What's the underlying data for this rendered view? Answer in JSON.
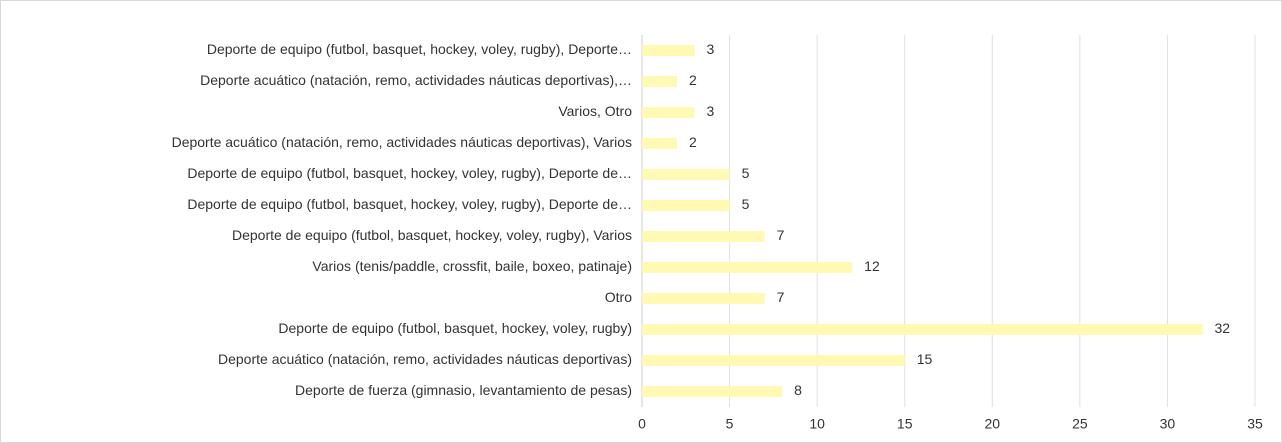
{
  "chart_data": {
    "type": "bar",
    "orientation": "horizontal",
    "categories": [
      "Deporte de equipo (futbol, basquet, hockey, voley, rugby), Deporte…",
      "Deporte acuático (natación, remo, actividades náuticas deportivas),…",
      "Varios, Otro",
      "Deporte acuático (natación, remo, actividades náuticas deportivas), Varios",
      "Deporte de equipo (futbol, basquet, hockey, voley, rugby), Deporte de…",
      "Deporte de equipo (futbol, basquet, hockey, voley, rugby), Deporte de…",
      "Deporte de equipo (futbol, basquet, hockey, voley, rugby), Varios",
      "Varios (tenis/paddle, crossfit, baile, boxeo, patinaje)",
      "Otro",
      "Deporte de equipo (futbol, basquet, hockey, voley, rugby)",
      "Deporte acuático (natación, remo, actividades náuticas deportivas)",
      "Deporte de fuerza (gimnasio, levantamiento de pesas)"
    ],
    "values": [
      3,
      2,
      3,
      2,
      5,
      5,
      7,
      12,
      7,
      32,
      15,
      8
    ],
    "color": "#fff9b3",
    "xlim": [
      0,
      35
    ],
    "xticks": [
      0,
      5,
      10,
      15,
      20,
      25,
      30,
      35
    ],
    "grid": true
  }
}
